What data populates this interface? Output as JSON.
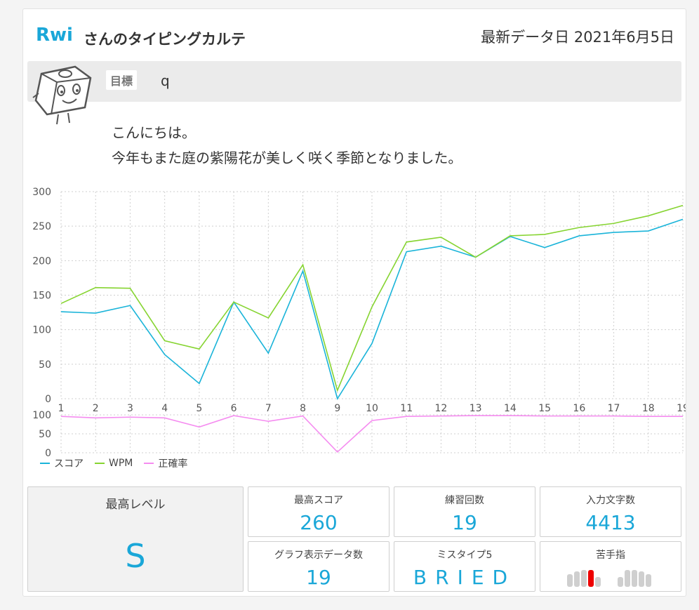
{
  "header": {
    "username": "Rwi",
    "title_suffix": "さんのタイピングカルテ",
    "latest_date": "最新データ日 2021年6月5日"
  },
  "goal": {
    "label": "目標",
    "value": "q"
  },
  "greeting": {
    "line1": "こんにちは。",
    "line2": "今年もまた庭の紫陽花が美しく咲く季節となりました。"
  },
  "colors": {
    "score": "#1ab4d9",
    "wpm": "#86d431",
    "accuracy": "#f58cf0",
    "accent": "#1aa7d8",
    "weak_finger": "#ee0000"
  },
  "chart_data": [
    {
      "type": "line",
      "x": [
        1,
        2,
        3,
        4,
        5,
        6,
        7,
        8,
        9,
        10,
        11,
        12,
        13,
        14,
        15,
        16,
        17,
        18,
        19
      ],
      "ylim": [
        0,
        300
      ],
      "yticks": [
        0,
        50,
        100,
        150,
        200,
        250,
        300
      ],
      "grid": true,
      "series": [
        {
          "name": "スコア",
          "values": [
            126,
            124,
            135,
            64,
            22,
            140,
            66,
            185,
            0,
            80,
            213,
            221,
            205,
            235,
            219,
            236,
            241,
            243,
            260
          ]
        },
        {
          "name": "WPM",
          "values": [
            138,
            161,
            160,
            84,
            72,
            140,
            117,
            194,
            12,
            133,
            227,
            234,
            205,
            236,
            238,
            248,
            254,
            265,
            280
          ]
        }
      ]
    },
    {
      "type": "line",
      "x": [
        1,
        2,
        3,
        4,
        5,
        6,
        7,
        8,
        9,
        10,
        11,
        12,
        13,
        14,
        15,
        16,
        17,
        18,
        19
      ],
      "ylim": [
        0,
        100
      ],
      "yticks": [
        0,
        50,
        100
      ],
      "grid": true,
      "series": [
        {
          "name": "正確率",
          "values": [
            96,
            92,
            94,
            92,
            68,
            98,
            83,
            97,
            2,
            85,
            96,
            97,
            98,
            98,
            97,
            97,
            97,
            96,
            96
          ]
        }
      ]
    }
  ],
  "legend": [
    "スコア",
    "WPM",
    "正確率"
  ],
  "stats": {
    "max_level": {
      "label": "最高レベル",
      "value": "S"
    },
    "max_score": {
      "label": "最高スコア",
      "value": "260"
    },
    "practice_count": {
      "label": "練習回数",
      "value": "19"
    },
    "char_count": {
      "label": "入力文字数",
      "value": "4413"
    },
    "graph_count": {
      "label": "グラフ表示データ数",
      "value": "19"
    },
    "mistype": {
      "label": "ミスタイプ5",
      "value": "BRIED"
    },
    "weak_finger": {
      "label": "苦手指",
      "weak_index": 3
    }
  }
}
